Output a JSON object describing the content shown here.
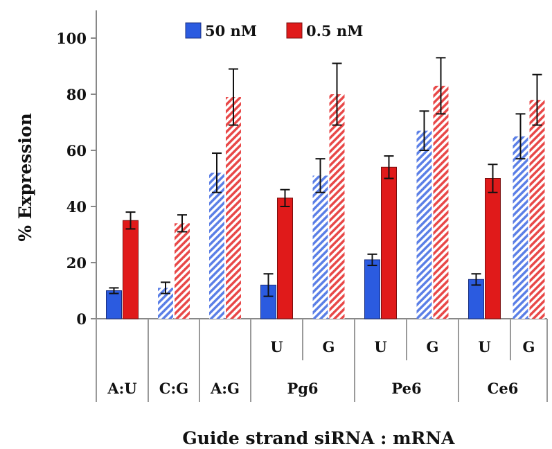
{
  "chart_data": {
    "type": "bar",
    "title": "",
    "ylabel": "% Expression",
    "xlabel": "Guide strand siRNA : mRNA",
    "ylim": [
      0,
      100
    ],
    "yticks": [
      "0",
      "20",
      "40",
      "60",
      "80",
      "100"
    ],
    "legend": {
      "placement": "top",
      "entries": [
        "50 nM",
        "0.5 nM"
      ]
    },
    "series": [
      {
        "name": "50 nM",
        "color": "#2b5be0"
      },
      {
        "name": "0.5 nM",
        "color": "#e01a1a"
      }
    ],
    "groups": [
      {
        "label": "A:U",
        "sub": "",
        "hatched": false,
        "values": [
          10,
          35
        ],
        "errors": [
          1,
          3
        ]
      },
      {
        "label": "C:G",
        "sub": "",
        "hatched": true,
        "values": [
          11,
          34
        ],
        "errors": [
          2,
          3
        ]
      },
      {
        "label": "A:G",
        "sub": "",
        "hatched": true,
        "values": [
          52,
          79
        ],
        "errors": [
          7,
          10
        ]
      },
      {
        "label": "Pg6",
        "sub": "U",
        "hatched": false,
        "values": [
          12,
          43
        ],
        "errors": [
          4,
          3
        ]
      },
      {
        "label": "Pg6",
        "sub": "G",
        "hatched": true,
        "values": [
          51,
          80
        ],
        "errors": [
          6,
          11
        ]
      },
      {
        "label": "Pe6",
        "sub": "U",
        "hatched": false,
        "values": [
          21,
          54
        ],
        "errors": [
          2,
          4
        ]
      },
      {
        "label": "Pe6",
        "sub": "G",
        "hatched": true,
        "values": [
          67,
          83
        ],
        "errors": [
          7,
          10
        ]
      },
      {
        "label": "Ce6",
        "sub": "U",
        "hatched": false,
        "values": [
          14,
          50
        ],
        "errors": [
          2,
          5
        ]
      },
      {
        "label": "Ce6",
        "sub": "G",
        "hatched": true,
        "values": [
          65,
          78
        ],
        "errors": [
          8,
          9
        ]
      }
    ],
    "category_labels": [
      "A:U",
      "C:G",
      "A:G",
      "Pg6",
      "Pe6",
      "Ce6"
    ],
    "grid": false
  }
}
